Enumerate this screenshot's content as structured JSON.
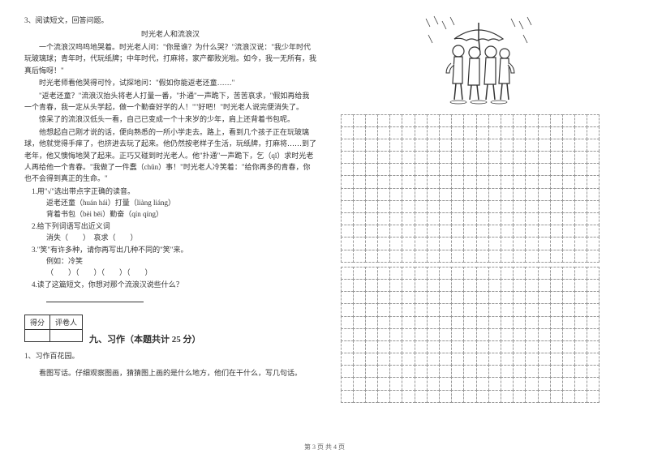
{
  "question3": {
    "number": "3、阅读短文，回答问题。",
    "title": "时光老人和流浪汉",
    "p1": "一个流浪汉呜呜地哭着。时光老人问：\"你是谁？为什么哭？\"流浪汉说：\"我少年时代玩玻璃球；青年时，代玩纸牌；中年时代，打麻将，家产都败光啦。如今，我一无所有，我真后悔呀！\"",
    "p2": "时光老师看他哭得可怜，试探地问：\"假如你能返老还童……\"",
    "p3": "\"返老还童？\"流浪汉抬头将老人打量一番，\"扑通\"一声跪下，苦苦哀求，\"假如再给我一个青春，我一定从头学起，做一个勤奋好学的人！\"\"好吧！\"时光老人说完便消失了。",
    "p4": "惊呆了的流浪汉低头一看，自己已变成一个十来岁的少年，肩上还背着书包呢。",
    "p5": "他想起自己刚才说的话，便向熟悉的一所小学走去。路上，看到几个孩子正在玩玻璃球，他就觉得手痒了，也挤进去玩了起来。他仍然按老样子生活，玩纸牌，打麻将……到了老年，他又懊悔地哭了起来。正巧又碰到时光老人。他\"扑通\"一声跪下，乞（qǐ）求时光老人再给他一个青春。\"我做了一件蠢（chǔn）事！\"时光老人冷笑着：\"给你再多的青春，你也不会得到真正的生命。\"",
    "sub1": "1.用\"√\"选出带点字正确的读音。",
    "sub1a": "返老还童（huán  hái）打量（liàng  liáng）",
    "sub1b": "背着书包（bèi  bēi）勤奋（qín  qíng）",
    "sub2": "2.给下列词语写出近义词",
    "sub2a": "消失（　　）　哀求（　　）",
    "sub3": "3.\"笑\"有许多种，请你再写出几种不同的\"笑\"来。",
    "sub3a": "例如：冷笑",
    "sub3b": "（　　）（　　）（　　）（　　）",
    "sub4": "4.读了这篇短文，你想对那个流浪汉说些什么？"
  },
  "scoreTable": {
    "col1": "得分",
    "col2": "评卷人"
  },
  "section9": {
    "title": "九、习作（本题共计 25 分）",
    "item1": "1、习作百花园。",
    "item1a": "看图写话。仔细观察图画，猜猜图上画的是什么地方，他们在干什么，写几句话。"
  },
  "grids": {
    "grid1_rows": 12,
    "grid2_rows": 11,
    "cols": 21
  },
  "footer": "第 3 页 共 4 页",
  "colors": {
    "text": "#333333",
    "border": "#333333",
    "gridBorder": "#999999",
    "background": "#ffffff"
  }
}
